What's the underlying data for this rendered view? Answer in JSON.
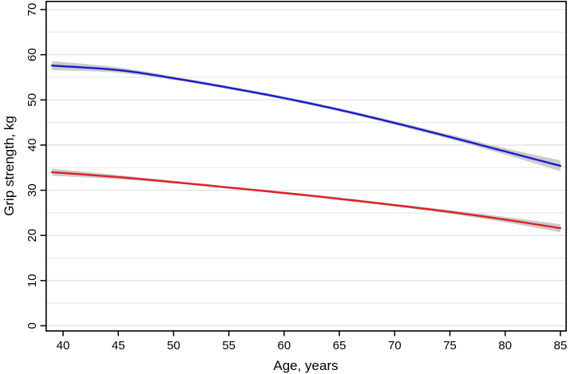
{
  "chart_data": {
    "type": "line",
    "title": "",
    "xlabel": "Age, years",
    "ylabel": "Grip strength, kg",
    "xlim": [
      38.4,
      85.6
    ],
    "ylim": [
      0,
      70
    ],
    "x_ticks": [
      40,
      45,
      50,
      55,
      60,
      65,
      70,
      75,
      80,
      85
    ],
    "y_ticks": [
      0,
      10,
      20,
      30,
      40,
      50,
      60,
      70
    ],
    "grid_step": 5,
    "grid_on": true,
    "legend": "none",
    "x": [
      39,
      45,
      50,
      55,
      60,
      65,
      70,
      75,
      80,
      85
    ],
    "series": [
      {
        "id": "blue-curve",
        "color": "#1a1acd",
        "values": [
          57.6,
          56.6,
          54.8,
          52.7,
          50.4,
          47.8,
          44.9,
          41.8,
          38.6,
          35.4
        ],
        "upper": [
          58.6,
          57.2,
          55.2,
          53.05,
          50.75,
          48.15,
          45.3,
          42.3,
          39.3,
          36.6
        ],
        "lower": [
          56.6,
          56.0,
          54.4,
          52.35,
          50.05,
          47.45,
          44.5,
          41.3,
          37.9,
          34.2
        ]
      },
      {
        "id": "red-curve",
        "color": "#e02222",
        "values": [
          34.0,
          32.9,
          31.8,
          30.6,
          29.4,
          28.1,
          26.7,
          25.2,
          23.5,
          21.6
        ],
        "upper": [
          34.8,
          33.35,
          32.1,
          30.85,
          29.65,
          28.4,
          27.0,
          25.6,
          24.1,
          22.5
        ],
        "lower": [
          33.2,
          32.45,
          31.5,
          30.35,
          29.15,
          27.8,
          26.4,
          24.8,
          22.9,
          20.7
        ]
      }
    ],
    "band_color": "#c7c7c7",
    "colors": {
      "background": "#ffffff",
      "axis": "#000000",
      "grid_major": "#dedede",
      "grid_minor": "#e7e7e7"
    }
  }
}
